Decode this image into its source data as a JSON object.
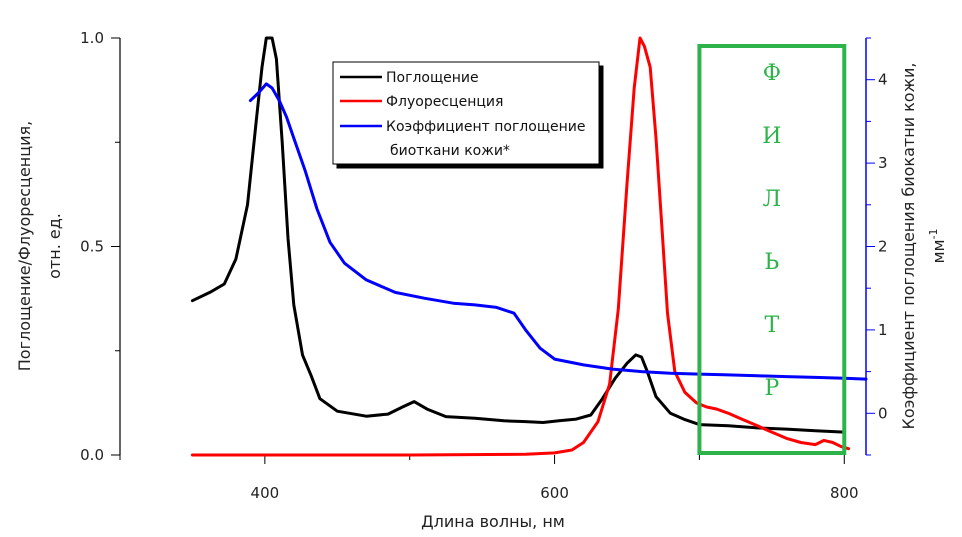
{
  "chart_data": {
    "type": "line",
    "xlabel": "Длина волны, нм",
    "ylabel_left_line1": "Поглощение/Флуоресценция,",
    "ylabel_left_line2": "отн. ед.",
    "ylabel_right_line1": "Коэффициент поглощения биокатни кожи,",
    "ylabel_right_line2": "мм",
    "ylabel_right_sup": "-1",
    "xlim": [
      300,
      815
    ],
    "ylim_left": [
      0,
      1.0
    ],
    "ylim_right": [
      -0.5,
      4.5
    ],
    "x_ticks": [
      400,
      600,
      800
    ],
    "x_tick_labels": [
      "400",
      "600",
      "800"
    ],
    "y_left_ticks": [
      0,
      0.5,
      1.0
    ],
    "y_left_tick_labels": [
      "0.0",
      "0.5",
      "1.0"
    ],
    "y_right_ticks": [
      0,
      1,
      2,
      3,
      4
    ],
    "y_right_tick_labels": [
      "0",
      "1",
      "2",
      "3",
      "4"
    ],
    "grid": false,
    "legend_position": "top-center",
    "series": [
      {
        "name": "Поглощение",
        "color": "#000000",
        "axis": "left",
        "x": [
          350,
          362,
          372,
          380,
          388,
          394,
          398,
          401,
          405,
          408,
          412,
          416,
          420,
          426,
          432,
          438,
          450,
          470,
          485,
          495,
          503,
          512,
          525,
          545,
          565,
          580,
          592,
          603,
          615,
          625,
          633,
          642,
          650,
          656,
          660,
          664,
          670,
          680,
          690,
          700,
          720,
          740,
          760,
          780,
          800
        ],
        "y": [
          0.37,
          0.39,
          0.41,
          0.47,
          0.6,
          0.8,
          0.93,
          1.0,
          1.0,
          0.95,
          0.75,
          0.52,
          0.36,
          0.24,
          0.19,
          0.135,
          0.105,
          0.093,
          0.098,
          0.115,
          0.128,
          0.11,
          0.092,
          0.088,
          0.082,
          0.08,
          0.078,
          0.082,
          0.086,
          0.096,
          0.135,
          0.185,
          0.22,
          0.24,
          0.235,
          0.2,
          0.14,
          0.1,
          0.085,
          0.073,
          0.07,
          0.065,
          0.062,
          0.058,
          0.055
        ]
      },
      {
        "name": "Флуоресценция",
        "color": "#ff0000",
        "axis": "left",
        "x": [
          350,
          500,
          580,
          600,
          612,
          620,
          630,
          638,
          644,
          650,
          655,
          659,
          662,
          666,
          670,
          674,
          678,
          683,
          690,
          698,
          705,
          712,
          720,
          730,
          740,
          750,
          760,
          770,
          780,
          786,
          792,
          798,
          803
        ],
        "y": [
          0.0,
          0.0,
          0.002,
          0.005,
          0.012,
          0.03,
          0.08,
          0.17,
          0.35,
          0.65,
          0.88,
          1.0,
          0.98,
          0.93,
          0.76,
          0.55,
          0.34,
          0.2,
          0.15,
          0.125,
          0.115,
          0.11,
          0.1,
          0.085,
          0.07,
          0.055,
          0.04,
          0.03,
          0.025,
          0.035,
          0.03,
          0.02,
          0.015
        ]
      },
      {
        "name": "Коэффициент поглощение биоткани кожи*",
        "color": "#0000ff",
        "axis": "right",
        "x": [
          390,
          396,
          401,
          405,
          410,
          415,
          420,
          428,
          436,
          445,
          455,
          470,
          490,
          510,
          520,
          530,
          545,
          560,
          572,
          580,
          590,
          600,
          620,
          640,
          660,
          680,
          700,
          720,
          740,
          760,
          780,
          800,
          815
        ],
        "y": [
          3.75,
          3.85,
          3.95,
          3.9,
          3.75,
          3.55,
          3.3,
          2.9,
          2.45,
          2.05,
          1.8,
          1.6,
          1.45,
          1.38,
          1.35,
          1.32,
          1.3,
          1.27,
          1.2,
          1.0,
          0.78,
          0.65,
          0.58,
          0.53,
          0.5,
          0.48,
          0.47,
          0.46,
          0.45,
          0.44,
          0.43,
          0.42,
          0.41
        ]
      }
    ],
    "legend": {
      "entries": [
        {
          "label": "Поглощение",
          "color": "#000000"
        },
        {
          "label": "Флуоресценция",
          "color": "#ff0000"
        },
        {
          "label": "Коэффициент поглощение",
          "color": "#0000ff"
        }
      ],
      "continuation": "биоткани кожи*"
    },
    "filter_band": {
      "x_start": 700,
      "x_end": 800,
      "color": "#2db34a",
      "letters": [
        "Ф",
        "И",
        "Л",
        "Ь",
        "Т",
        "Р"
      ]
    }
  }
}
